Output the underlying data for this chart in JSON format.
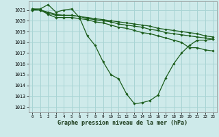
{
  "title": "Graphe pression niveau de la mer (hPa)",
  "bg_color": "#ceeaea",
  "grid_color": "#a8d4d4",
  "line_color": "#1a5c1a",
  "xlim": [
    -0.5,
    23.5
  ],
  "ylim": [
    1011.5,
    1021.8
  ],
  "yticks": [
    1012,
    1013,
    1014,
    1015,
    1016,
    1017,
    1018,
    1019,
    1020,
    1021
  ],
  "xticks": [
    0,
    1,
    2,
    3,
    4,
    5,
    6,
    7,
    8,
    9,
    10,
    11,
    12,
    13,
    14,
    15,
    16,
    17,
    18,
    19,
    20,
    21,
    22,
    23
  ],
  "series": [
    {
      "x": [
        0,
        1,
        2,
        3,
        4,
        5,
        6,
        7,
        8,
        9,
        10,
        11,
        12,
        13,
        14,
        15,
        16,
        17,
        18,
        19,
        20,
        21,
        22,
        23
      ],
      "y": [
        1021.1,
        1021.1,
        1021.5,
        1020.8,
        1021.0,
        1021.1,
        1020.3,
        1018.6,
        1017.7,
        1016.2,
        1015.0,
        1014.6,
        1013.2,
        1012.3,
        1012.4,
        1012.6,
        1013.1,
        1014.7,
        1016.0,
        1017.0,
        1017.7,
        1018.2,
        1018.2,
        1018.3
      ]
    },
    {
      "x": [
        0,
        1,
        2,
        3,
        4,
        5,
        6,
        7,
        8,
        9,
        10,
        11,
        12,
        13,
        14,
        15,
        16,
        17,
        18,
        19,
        20,
        21,
        22,
        23
      ],
      "y": [
        1021.1,
        1021.0,
        1020.8,
        1020.6,
        1020.5,
        1020.5,
        1020.4,
        1020.3,
        1020.2,
        1020.1,
        1020.0,
        1019.9,
        1019.8,
        1019.7,
        1019.6,
        1019.5,
        1019.3,
        1019.2,
        1019.1,
        1019.0,
        1018.9,
        1018.8,
        1018.6,
        1018.5
      ]
    },
    {
      "x": [
        0,
        1,
        2,
        3,
        4,
        5,
        6,
        7,
        8,
        9,
        10,
        11,
        12,
        13,
        14,
        15,
        16,
        17,
        18,
        19,
        20,
        21,
        22,
        23
      ],
      "y": [
        1021.0,
        1021.0,
        1020.7,
        1020.5,
        1020.5,
        1020.5,
        1020.4,
        1020.2,
        1020.1,
        1020.0,
        1019.9,
        1019.7,
        1019.6,
        1019.5,
        1019.4,
        1019.2,
        1019.1,
        1018.9,
        1018.8,
        1018.7,
        1018.6,
        1018.5,
        1018.4,
        1018.3
      ]
    },
    {
      "x": [
        0,
        1,
        2,
        3,
        4,
        5,
        6,
        7,
        8,
        9,
        10,
        11,
        12,
        13,
        14,
        15,
        16,
        17,
        18,
        19,
        20,
        21,
        22,
        23
      ],
      "y": [
        1021.0,
        1021.0,
        1020.6,
        1020.3,
        1020.3,
        1020.3,
        1020.2,
        1020.1,
        1019.9,
        1019.8,
        1019.6,
        1019.4,
        1019.3,
        1019.1,
        1018.9,
        1018.8,
        1018.6,
        1018.4,
        1018.2,
        1018.0,
        1017.5,
        1017.5,
        1017.3,
        1017.2
      ]
    }
  ]
}
